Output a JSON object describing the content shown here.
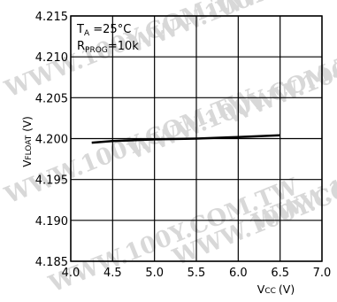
{
  "chart_data": {
    "type": "line",
    "title": "",
    "xlabel": {
      "main": "V",
      "sub": "CC",
      "unit": "(V)"
    },
    "ylabel": {
      "main": "V",
      "sub": "FLOAT",
      "unit": "(V)"
    },
    "xlim": [
      4.0,
      7.0
    ],
    "ylim": [
      4.185,
      4.215
    ],
    "xticks": [
      4.0,
      4.5,
      5.0,
      5.5,
      6.0,
      6.5,
      7.0
    ],
    "xtick_labels": [
      "4.0",
      "4.5",
      "5.0",
      "5.5",
      "6.0",
      "6.5",
      "7.0"
    ],
    "yticks": [
      4.185,
      4.19,
      4.195,
      4.2,
      4.205,
      4.21,
      4.215
    ],
    "ytick_labels": [
      "4.185",
      "4.190",
      "4.195",
      "4.200",
      "4.205",
      "4.210",
      "4.215"
    ],
    "grid": true,
    "annotations": [
      {
        "main": "T",
        "sub": "A",
        "rest": " =25°C"
      },
      {
        "main": "R",
        "sub": "PROG",
        "rest": "=10k"
      }
    ],
    "series": [
      {
        "x": [
          4.25,
          4.5,
          5.0,
          5.5,
          6.0,
          6.5
        ],
        "y": [
          4.1995,
          4.1997,
          4.1999,
          4.2,
          4.2002,
          4.2004
        ]
      }
    ]
  },
  "watermark": "WWW.100Y.COM.TW",
  "colors": {
    "line": "#000000",
    "grid": "#000000",
    "background": "#ffffff"
  }
}
